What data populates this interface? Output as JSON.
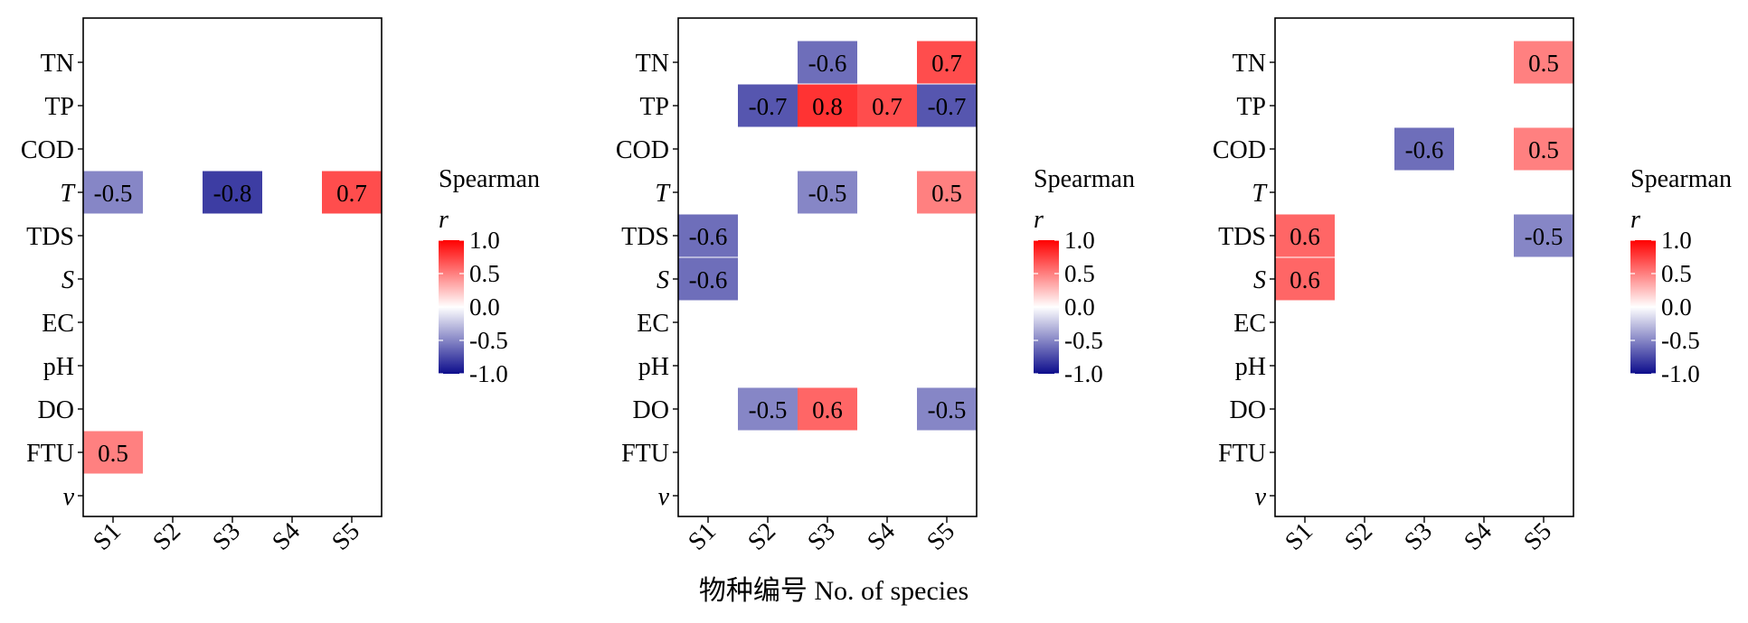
{
  "xlabel": "物种编号  No. of species",
  "legend": {
    "title_line1": "Spearman",
    "title_line2": "r",
    "ticks": [
      "1.0",
      "0.5",
      "0.0",
      "-0.5",
      "-1.0"
    ],
    "tick_values": [
      1.0,
      0.5,
      0.0,
      -0.5,
      -1.0
    ],
    "colors": {
      "low": "#0d0d8c",
      "mid": "#ffffff",
      "high": "#ff0000"
    }
  },
  "chart_data": [
    {
      "type": "heatmap",
      "x": [
        "S1",
        "S2",
        "S3",
        "S4",
        "S5"
      ],
      "y": [
        "TN",
        "TP",
        "COD",
        "T",
        "TDS",
        "S",
        "EC",
        "pH",
        "DO",
        "FTU",
        "v"
      ],
      "italic_y": [
        "T",
        "S",
        "v"
      ],
      "value_range": [
        -1,
        1
      ],
      "cells": [
        {
          "x": "S1",
          "y": "T",
          "value": -0.5,
          "label": "-0.5"
        },
        {
          "x": "S3",
          "y": "T",
          "value": -0.8,
          "label": "-0.8"
        },
        {
          "x": "S5",
          "y": "T",
          "value": 0.7,
          "label": "0.7"
        },
        {
          "x": "S1",
          "y": "FTU",
          "value": 0.5,
          "label": "0.5"
        }
      ]
    },
    {
      "type": "heatmap",
      "x": [
        "S1",
        "S2",
        "S3",
        "S4",
        "S5"
      ],
      "y": [
        "TN",
        "TP",
        "COD",
        "T",
        "TDS",
        "S",
        "EC",
        "pH",
        "DO",
        "FTU",
        "v"
      ],
      "italic_y": [
        "T",
        "S",
        "v"
      ],
      "value_range": [
        -1,
        1
      ],
      "cells": [
        {
          "x": "S3",
          "y": "TN",
          "value": -0.6,
          "label": "-0.6"
        },
        {
          "x": "S5",
          "y": "TN",
          "value": 0.7,
          "label": "0.7"
        },
        {
          "x": "S2",
          "y": "TP",
          "value": -0.7,
          "label": "-0.7"
        },
        {
          "x": "S3",
          "y": "TP",
          "value": 0.8,
          "label": "0.8"
        },
        {
          "x": "S4",
          "y": "TP",
          "value": 0.7,
          "label": "0.7"
        },
        {
          "x": "S5",
          "y": "TP",
          "value": -0.7,
          "label": "-0.7"
        },
        {
          "x": "S3",
          "y": "T",
          "value": -0.5,
          "label": "-0.5"
        },
        {
          "x": "S5",
          "y": "T",
          "value": 0.5,
          "label": "0.5"
        },
        {
          "x": "S1",
          "y": "TDS",
          "value": -0.6,
          "label": "-0.6"
        },
        {
          "x": "S1",
          "y": "S",
          "value": -0.6,
          "label": "-0.6"
        },
        {
          "x": "S2",
          "y": "DO",
          "value": -0.5,
          "label": "-0.5"
        },
        {
          "x": "S3",
          "y": "DO",
          "value": 0.6,
          "label": "0.6"
        },
        {
          "x": "S5",
          "y": "DO",
          "value": -0.5,
          "label": "-0.5"
        }
      ]
    },
    {
      "type": "heatmap",
      "x": [
        "S1",
        "S2",
        "S3",
        "S4",
        "S5"
      ],
      "y": [
        "TN",
        "TP",
        "COD",
        "T",
        "TDS",
        "S",
        "EC",
        "pH",
        "DO",
        "FTU",
        "v"
      ],
      "italic_y": [
        "T",
        "S",
        "v"
      ],
      "value_range": [
        -1,
        1
      ],
      "cells": [
        {
          "x": "S5",
          "y": "TN",
          "value": 0.5,
          "label": "0.5"
        },
        {
          "x": "S3",
          "y": "COD",
          "value": -0.6,
          "label": "-0.6"
        },
        {
          "x": "S5",
          "y": "COD",
          "value": 0.5,
          "label": "0.5"
        },
        {
          "x": "S1",
          "y": "TDS",
          "value": 0.6,
          "label": "0.6"
        },
        {
          "x": "S5",
          "y": "TDS",
          "value": -0.5,
          "label": "-0.5"
        },
        {
          "x": "S1",
          "y": "S",
          "value": 0.6,
          "label": "0.6"
        }
      ]
    }
  ]
}
